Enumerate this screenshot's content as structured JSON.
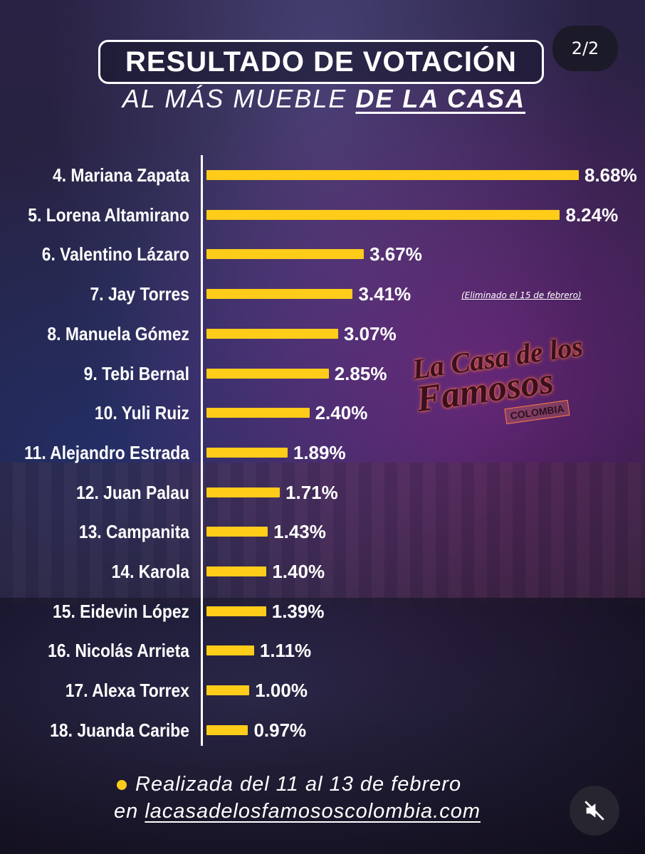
{
  "header": {
    "title": "RESULTADO DE VOTACIÓN",
    "subtitle_part1": "AL MÁS MUEBLE",
    "subtitle_part2": "DE LA CASA",
    "page_counter": "2/2"
  },
  "logo": {
    "line1": "La Casa de los",
    "line2": "Famosos",
    "line3": "COLOMBIA"
  },
  "chart_data": {
    "type": "bar",
    "orientation": "horizontal",
    "categories": [
      "4. Mariana Zapata",
      "5. Lorena Altamirano",
      "6. Valentino Lázaro",
      "7. Jay Torres",
      "8. Manuela Gómez",
      "9. Tebi Bernal",
      "10. Yuli Ruiz",
      "11. Alejandro Estrada",
      "12. Juan Palau",
      "13. Campanita",
      "14. Karola",
      "15. Eidevin López",
      "16. Nicolás Arrieta",
      "17. Alexa Torrex",
      "18. Juanda Caribe"
    ],
    "values": [
      8.68,
      8.24,
      3.67,
      3.41,
      3.07,
      2.85,
      2.4,
      1.89,
      1.71,
      1.43,
      1.4,
      1.39,
      1.11,
      1.0,
      0.97
    ],
    "labels": [
      "8.68%",
      "8.24%",
      "3.67%",
      "3.41%",
      "3.07%",
      "2.85%",
      "2.40%",
      "1.89%",
      "1.71%",
      "1.43%",
      "1.40%",
      "1.39%",
      "1.11%",
      "1.00%",
      "0.97%"
    ],
    "annotations": [
      {
        "category": "7. Jay Torres",
        "text": "(Eliminado el 15 de febrero)"
      }
    ],
    "bar_color": "#ffcc1a",
    "xlim": [
      0,
      8.68
    ]
  },
  "footer": {
    "line1": "Realizada del 11 al 13 de febrero",
    "line2_prefix": "en",
    "line2_url": "lacasadelosfamososcolombia.com"
  },
  "controls": {
    "mute_icon": "mute-icon"
  }
}
